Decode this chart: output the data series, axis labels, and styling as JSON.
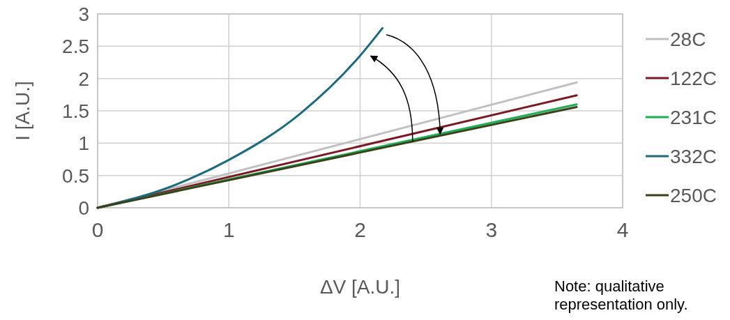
{
  "chart_data": {
    "type": "line",
    "xlabel": "ΔV [A.U.]",
    "ylabel": "I [A.U.]",
    "xlim": [
      0,
      4
    ],
    "xticks": [
      0,
      1,
      2,
      3,
      4
    ],
    "ylim": [
      0,
      3
    ],
    "yticks": [
      0,
      0.5,
      1,
      1.5,
      2,
      2.5,
      3
    ],
    "grid": true,
    "legend": "right",
    "series": [
      {
        "name": "28C",
        "color": "#c0c0c0",
        "x": [
          0,
          3.65
        ],
        "values": [
          0,
          1.94
        ]
      },
      {
        "name": "122C",
        "color": "#7b1a25",
        "x": [
          0,
          3.65
        ],
        "values": [
          0,
          1.74
        ]
      },
      {
        "name": "231C",
        "color": "#1fae55",
        "x": [
          0,
          3.65
        ],
        "values": [
          0,
          1.6
        ]
      },
      {
        "name": "332C",
        "color": "#1b6a7e",
        "x": [
          0,
          0.48,
          0.99,
          1.54,
          1.99,
          2.17
        ],
        "values": [
          0,
          0.27,
          0.73,
          1.45,
          2.33,
          2.78
        ]
      },
      {
        "name": "250C",
        "color": "#3a421c",
        "x": [
          0,
          3.65
        ],
        "values": [
          0,
          1.56
        ]
      }
    ],
    "annotations": [
      "Note: qualitative representation only."
    ]
  }
}
